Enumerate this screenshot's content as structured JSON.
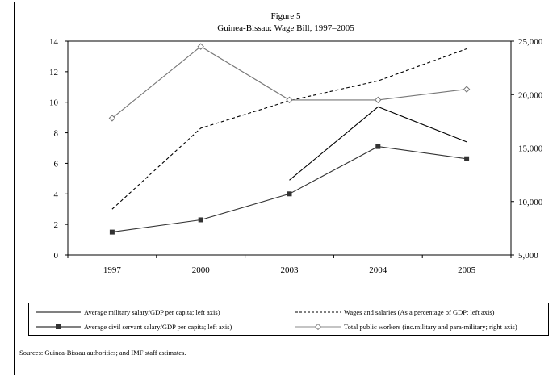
{
  "chart_data": {
    "type": "line",
    "title": "Figure 5",
    "subtitle": "Guinea-Bissau: Wage Bill, 1997–2005",
    "categories": [
      "1997",
      "2000",
      "2003",
      "2004",
      "2005"
    ],
    "left_axis": {
      "min": 0,
      "max": 14,
      "ticks": [
        "0",
        "2",
        "4",
        "6",
        "8",
        "10",
        "12",
        "14"
      ]
    },
    "right_axis": {
      "min": 5000,
      "max": 25000,
      "ticks": [
        "5,000",
        "10,000",
        "15,000",
        "20,000",
        "25,000"
      ]
    },
    "grid": false,
    "legend_position": "bottom",
    "series": [
      {
        "name": "Average military salary/GDP per capita; left axis)",
        "axis": "left",
        "style": "solid",
        "values": [
          null,
          null,
          4.9,
          9.7,
          7.4
        ]
      },
      {
        "name": "Wages and salaries (As a percentage of GDP; left axis)",
        "axis": "left",
        "style": "dashed",
        "values": [
          3.0,
          8.3,
          10.1,
          11.4,
          13.5
        ]
      },
      {
        "name": "Average civil servant salary/GDP per capita; left axis)",
        "axis": "left",
        "style": "square-marker",
        "values": [
          1.5,
          2.3,
          4.0,
          7.1,
          6.3
        ]
      },
      {
        "name": "Total public workers (inc.military and para-military; right axis)",
        "axis": "right",
        "style": "diamond-marker",
        "values": [
          17800,
          24500,
          19500,
          19500,
          20500
        ]
      }
    ],
    "source": "Sources: Guinea-Bissau authorities; and IMF staff estimates."
  }
}
